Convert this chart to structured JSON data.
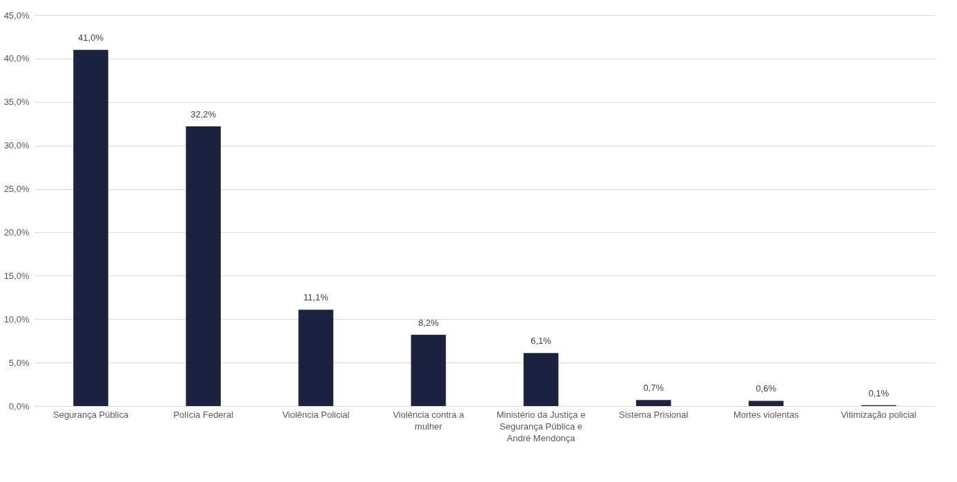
{
  "chart_data": {
    "type": "bar",
    "categories": [
      "Segurança Pública",
      "Polícia Federal",
      "Violência Policial",
      "Violência contra a mulher",
      "Ministério da Justiça e Segurança Pública e André Mendonça",
      "Sistema Prisional",
      "Mortes violentas",
      "Vitimização policial"
    ],
    "values": [
      41.0,
      32.2,
      11.1,
      8.2,
      6.1,
      0.7,
      0.6,
      0.1
    ],
    "value_labels": [
      "41,0%",
      "32,2%",
      "11,1%",
      "8,2%",
      "6,1%",
      "0,7%",
      "0,6%",
      "0,1%"
    ],
    "color": "#1b2340",
    "ylim": [
      0,
      45
    ],
    "yticks": [
      {
        "value": 0,
        "label": "0,0%"
      },
      {
        "value": 5,
        "label": "5,0%"
      },
      {
        "value": 10,
        "label": "10,0%"
      },
      {
        "value": 15,
        "label": "15,0%"
      },
      {
        "value": 20,
        "label": "20,0%"
      },
      {
        "value": 25,
        "label": "25,0%"
      },
      {
        "value": 30,
        "label": "30,0%"
      },
      {
        "value": 35,
        "label": "35,0%"
      },
      {
        "value": 40,
        "label": "40,0%"
      },
      {
        "value": 45,
        "label": "45,0%"
      }
    ],
    "grid": "y"
  }
}
